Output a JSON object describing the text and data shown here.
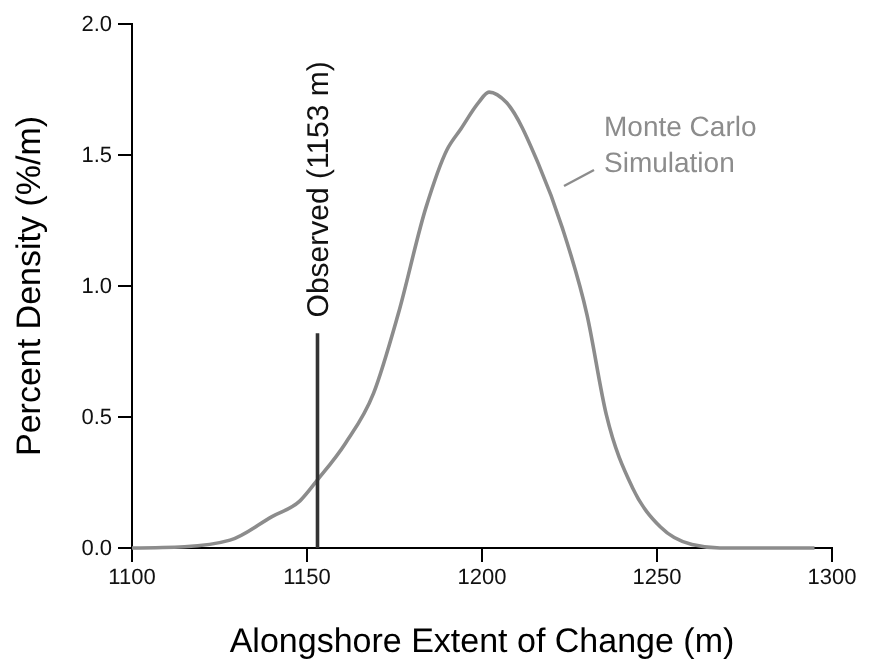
{
  "chart_data": {
    "type": "line",
    "xlabel": "Alongshore Extent of Change (m)",
    "ylabel": "Percent Density (%/m)",
    "xlim": [
      1100,
      1300
    ],
    "xticks": [
      1100,
      1150,
      1200,
      1250,
      1300
    ],
    "ylim": [
      0,
      2
    ],
    "yticks": [
      {
        "value": 0,
        "label": "0.0"
      },
      {
        "value": 0.5,
        "label": "0.5"
      },
      {
        "value": 1,
        "label": "1.0"
      },
      {
        "value": 1.5,
        "label": "1.5"
      },
      {
        "value": 2,
        "label": "2.0"
      }
    ],
    "grid": false,
    "legend": false,
    "marker": "none",
    "line_style": "solid",
    "series": [
      {
        "name": "Monte Carlo Simulation",
        "color": "#8c8c8c",
        "x": [
          1100,
          1115,
          1128,
          1140,
          1148,
          1153,
          1161,
          1169,
          1176,
          1184,
          1190,
          1194,
          1199,
          1202,
          1207,
          1216,
          1223,
          1230,
          1235.5,
          1243,
          1251,
          1260,
          1268,
          1295
        ],
        "values": [
          0,
          0.005,
          0.03,
          0.12,
          0.18,
          0.26,
          0.4,
          0.59,
          0.89,
          1.3,
          1.52,
          1.6,
          1.7,
          1.74,
          1.7,
          1.47,
          1.22,
          0.89,
          0.51,
          0.23,
          0.08,
          0.013,
          0,
          0
        ]
      }
    ],
    "ref_lines": [
      {
        "axis": "x",
        "value": 1153,
        "label": "Observed (1153 m)",
        "color": "#333333"
      }
    ]
  }
}
